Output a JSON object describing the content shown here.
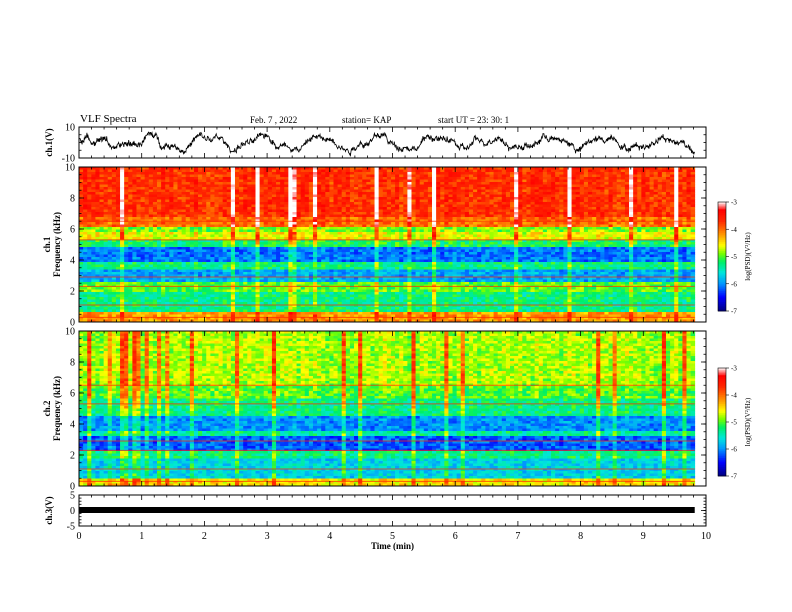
{
  "header": {
    "title": "VLF Spectra",
    "date": "Feb. 7 , 2022",
    "station": "station= KAP",
    "start": "start  UT =   23: 30: 1"
  },
  "chart_data": [
    {
      "type": "line",
      "panel": "ch1-waveform",
      "ylabel": "ch.1(V)",
      "ylim": [
        -10,
        10
      ],
      "yticks": [
        "10",
        "-10"
      ],
      "xlim": [
        0,
        10
      ],
      "note_series": "irregular waveform oscillating mostly between about -5 and +5 V over 0-9.8 min"
    },
    {
      "type": "heatmap",
      "panel": "ch1-spectrogram",
      "ylabel_line1": "ch.1",
      "ylabel_line2": "Frequency (kHz)",
      "ylim": [
        0,
        10
      ],
      "yticks": [
        "0",
        "2",
        "4",
        "6",
        "8",
        "10"
      ],
      "xlim": [
        0,
        10
      ],
      "bands": [
        {
          "from": 0.0,
          "to": 0.6,
          "level": -4.2
        },
        {
          "from": 0.6,
          "to": 2.0,
          "level": -5.3
        },
        {
          "from": 2.0,
          "to": 2.6,
          "level": -5.0
        },
        {
          "from": 2.6,
          "to": 3.4,
          "level": -5.9
        },
        {
          "from": 3.4,
          "to": 3.9,
          "level": -5.3
        },
        {
          "from": 3.9,
          "to": 4.9,
          "level": -6.1
        },
        {
          "from": 4.9,
          "to": 5.3,
          "level": -5.2
        },
        {
          "from": 5.3,
          "to": 5.8,
          "level": -4.6
        },
        {
          "from": 5.8,
          "to": 6.2,
          "level": -4.9
        },
        {
          "from": 6.2,
          "to": 6.8,
          "level": -4.0
        },
        {
          "from": 6.8,
          "to": 10.0,
          "level": -3.7
        }
      ],
      "colorbar": {
        "label": "log(PSD)(V²/Hz)",
        "ticks": [
          "-3",
          "-4",
          "-5",
          "-6",
          "-7"
        ],
        "range": [
          -7,
          -3
        ]
      }
    },
    {
      "type": "heatmap",
      "panel": "ch2-spectrogram",
      "ylabel_line1": "ch.2",
      "ylabel_line2": "Frequency (kHz)",
      "ylim": [
        0,
        10
      ],
      "yticks": [
        "0",
        "2",
        "4",
        "6",
        "8",
        "10"
      ],
      "xlim": [
        0,
        10
      ],
      "bands": [
        {
          "from": 0.0,
          "to": 0.5,
          "level": -4.5
        },
        {
          "from": 0.5,
          "to": 1.8,
          "level": -5.7
        },
        {
          "from": 1.8,
          "to": 2.3,
          "level": -5.3
        },
        {
          "from": 2.3,
          "to": 3.2,
          "level": -6.2
        },
        {
          "from": 3.2,
          "to": 3.6,
          "level": -5.4
        },
        {
          "from": 3.6,
          "to": 4.5,
          "level": -6.0
        },
        {
          "from": 4.5,
          "to": 5.6,
          "level": -5.3
        },
        {
          "from": 5.6,
          "to": 6.4,
          "level": -5.0
        },
        {
          "from": 6.4,
          "to": 10.0,
          "level": -4.8
        }
      ],
      "colorbar": {
        "label": "log(PSD)(V²/Hz)",
        "ticks": [
          "-3",
          "-4",
          "-5",
          "-6",
          "-7"
        ],
        "range": [
          -7,
          -3
        ]
      }
    },
    {
      "type": "line",
      "panel": "ch3-waveform",
      "ylabel": "ch.3(V)",
      "ylim": [
        -5,
        5
      ],
      "yticks": [
        "5",
        "0",
        "-5"
      ],
      "xlim": [
        0,
        10
      ],
      "xticks": [
        "0",
        "1",
        "2",
        "3",
        "4",
        "5",
        "6",
        "7",
        "8",
        "9",
        "10"
      ],
      "xlabel": "Time (min)",
      "note_series": "nearly constant thick band at about 0 V from 0 to 9.8 min"
    }
  ],
  "colors": {
    "axis": "#000000",
    "colormap": [
      "#000080",
      "#0000ff",
      "#00c0ff",
      "#00ff80",
      "#80ff00",
      "#ffff00",
      "#ff8000",
      "#ff0000",
      "#ffffff"
    ]
  }
}
